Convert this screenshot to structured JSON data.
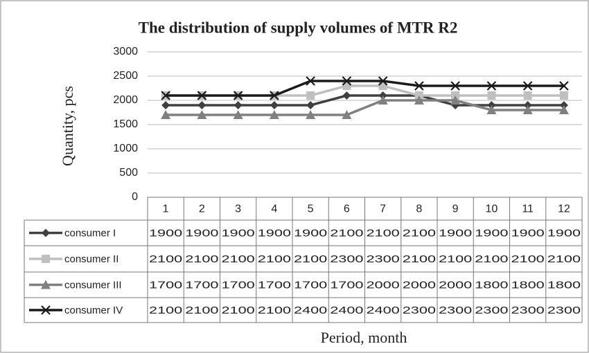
{
  "chart_data": {
    "type": "line",
    "title": "The distribution of supply volumes of MTR R2",
    "x_label": "Period, month",
    "y_label": "Quantity, pcs",
    "categories": [
      "1",
      "2",
      "3",
      "4",
      "5",
      "6",
      "7",
      "8",
      "9",
      "10",
      "11",
      "12"
    ],
    "series": [
      {
        "name": "consumer I",
        "color": "#404040",
        "marker": "diamond",
        "values": [
          1900,
          1900,
          1900,
          1900,
          1900,
          2100,
          2100,
          2100,
          1900,
          1900,
          1900,
          1900
        ]
      },
      {
        "name": "consumer II",
        "color": "#bfbfbf",
        "marker": "square",
        "values": [
          2100,
          2100,
          2100,
          2100,
          2100,
          2300,
          2300,
          2100,
          2100,
          2100,
          2100,
          2100
        ]
      },
      {
        "name": "consumer III",
        "color": "#808080",
        "marker": "triangle",
        "values": [
          1700,
          1700,
          1700,
          1700,
          1700,
          1700,
          2000,
          2000,
          2000,
          1800,
          1800,
          1800
        ]
      },
      {
        "name": "consumer IV",
        "color": "#1a1a1a",
        "marker": "x",
        "values": [
          2100,
          2100,
          2100,
          2100,
          2400,
          2400,
          2400,
          2300,
          2300,
          2300,
          2300,
          2300
        ]
      }
    ],
    "ylim": [
      0,
      3000
    ],
    "yticks": [
      0,
      500,
      1000,
      1500,
      2000,
      2500,
      3000
    ],
    "grid": true,
    "data_table": true
  }
}
